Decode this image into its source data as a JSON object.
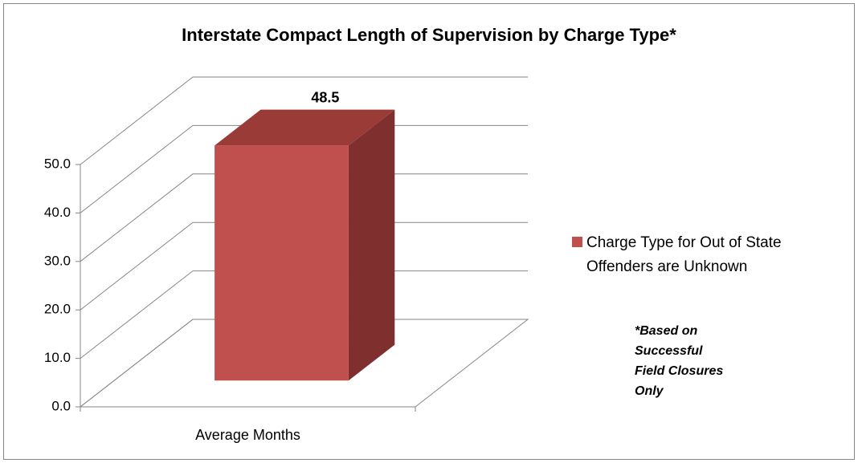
{
  "chart_data": {
    "type": "bar3d",
    "title": "Interstate Compact Length of Supervision by Charge Type*",
    "categories": [
      "Average Months"
    ],
    "series": [
      {
        "name": "Charge Type for Out of State Offenders are Unknown",
        "color": "#c0504d",
        "values": [
          48.5
        ]
      }
    ],
    "ylim": [
      0,
      50
    ],
    "yticks": [
      {
        "value": 0,
        "label": "0.0"
      },
      {
        "value": 10,
        "label": "10.0"
      },
      {
        "value": 20,
        "label": "20.0"
      },
      {
        "value": 30,
        "label": "30.0"
      },
      {
        "value": 40,
        "label": "40.0"
      },
      {
        "value": 50,
        "label": "50.0"
      }
    ],
    "grid": true,
    "legend": "right",
    "annotation": "*Based on Successful Field Closures Only"
  }
}
